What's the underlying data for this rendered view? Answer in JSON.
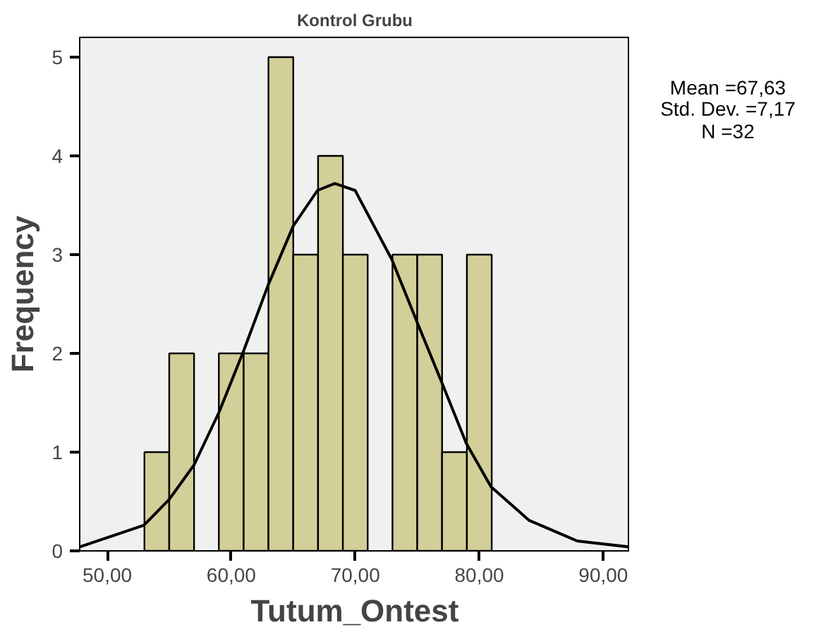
{
  "chart_data": {
    "type": "histogram",
    "title": "Kontrol Grubu",
    "xlabel": "Tutum_Ontest",
    "ylabel": "Frequency",
    "bins": [
      53,
      55,
      57,
      59,
      61,
      63,
      65,
      67,
      69,
      71,
      73,
      75,
      77,
      79,
      81
    ],
    "values": [
      1,
      2,
      0,
      2,
      2,
      5,
      3,
      4,
      3,
      0,
      3,
      3,
      1,
      3
    ],
    "color": "#d3cf98",
    "series": [
      {
        "type": "line",
        "color": "#000000",
        "x": [
          47.78,
          52.96,
          54.99,
          57.0,
          59.0,
          60.98,
          62.97,
          65.0,
          66.95,
          68.35,
          69.99,
          72.95,
          74.94,
          76.96,
          78.95,
          80.94,
          84.0,
          87.9,
          92.1
        ],
        "values": [
          0.04,
          0.26,
          0.52,
          0.87,
          1.4,
          2.02,
          2.69,
          3.29,
          3.65,
          3.72,
          3.65,
          2.95,
          2.33,
          1.71,
          1.09,
          0.65,
          0.31,
          0.1,
          0.04
        ]
      }
    ],
    "xlim": [
      47.78,
      92.14
    ],
    "ylim": [
      0,
      5.2
    ],
    "xticks": [
      {
        "value": 50,
        "label": "50,00"
      },
      {
        "value": 60,
        "label": "60,00"
      },
      {
        "value": 70,
        "label": "70,00"
      },
      {
        "value": 80,
        "label": "80,00"
      },
      {
        "value": 90,
        "label": "90,00"
      }
    ],
    "yticks": [
      0,
      1,
      2,
      3,
      4,
      5
    ],
    "grid": false,
    "annotations": [
      "Mean =67,63",
      "Std. Dev. =7,17",
      "N =32"
    ]
  }
}
